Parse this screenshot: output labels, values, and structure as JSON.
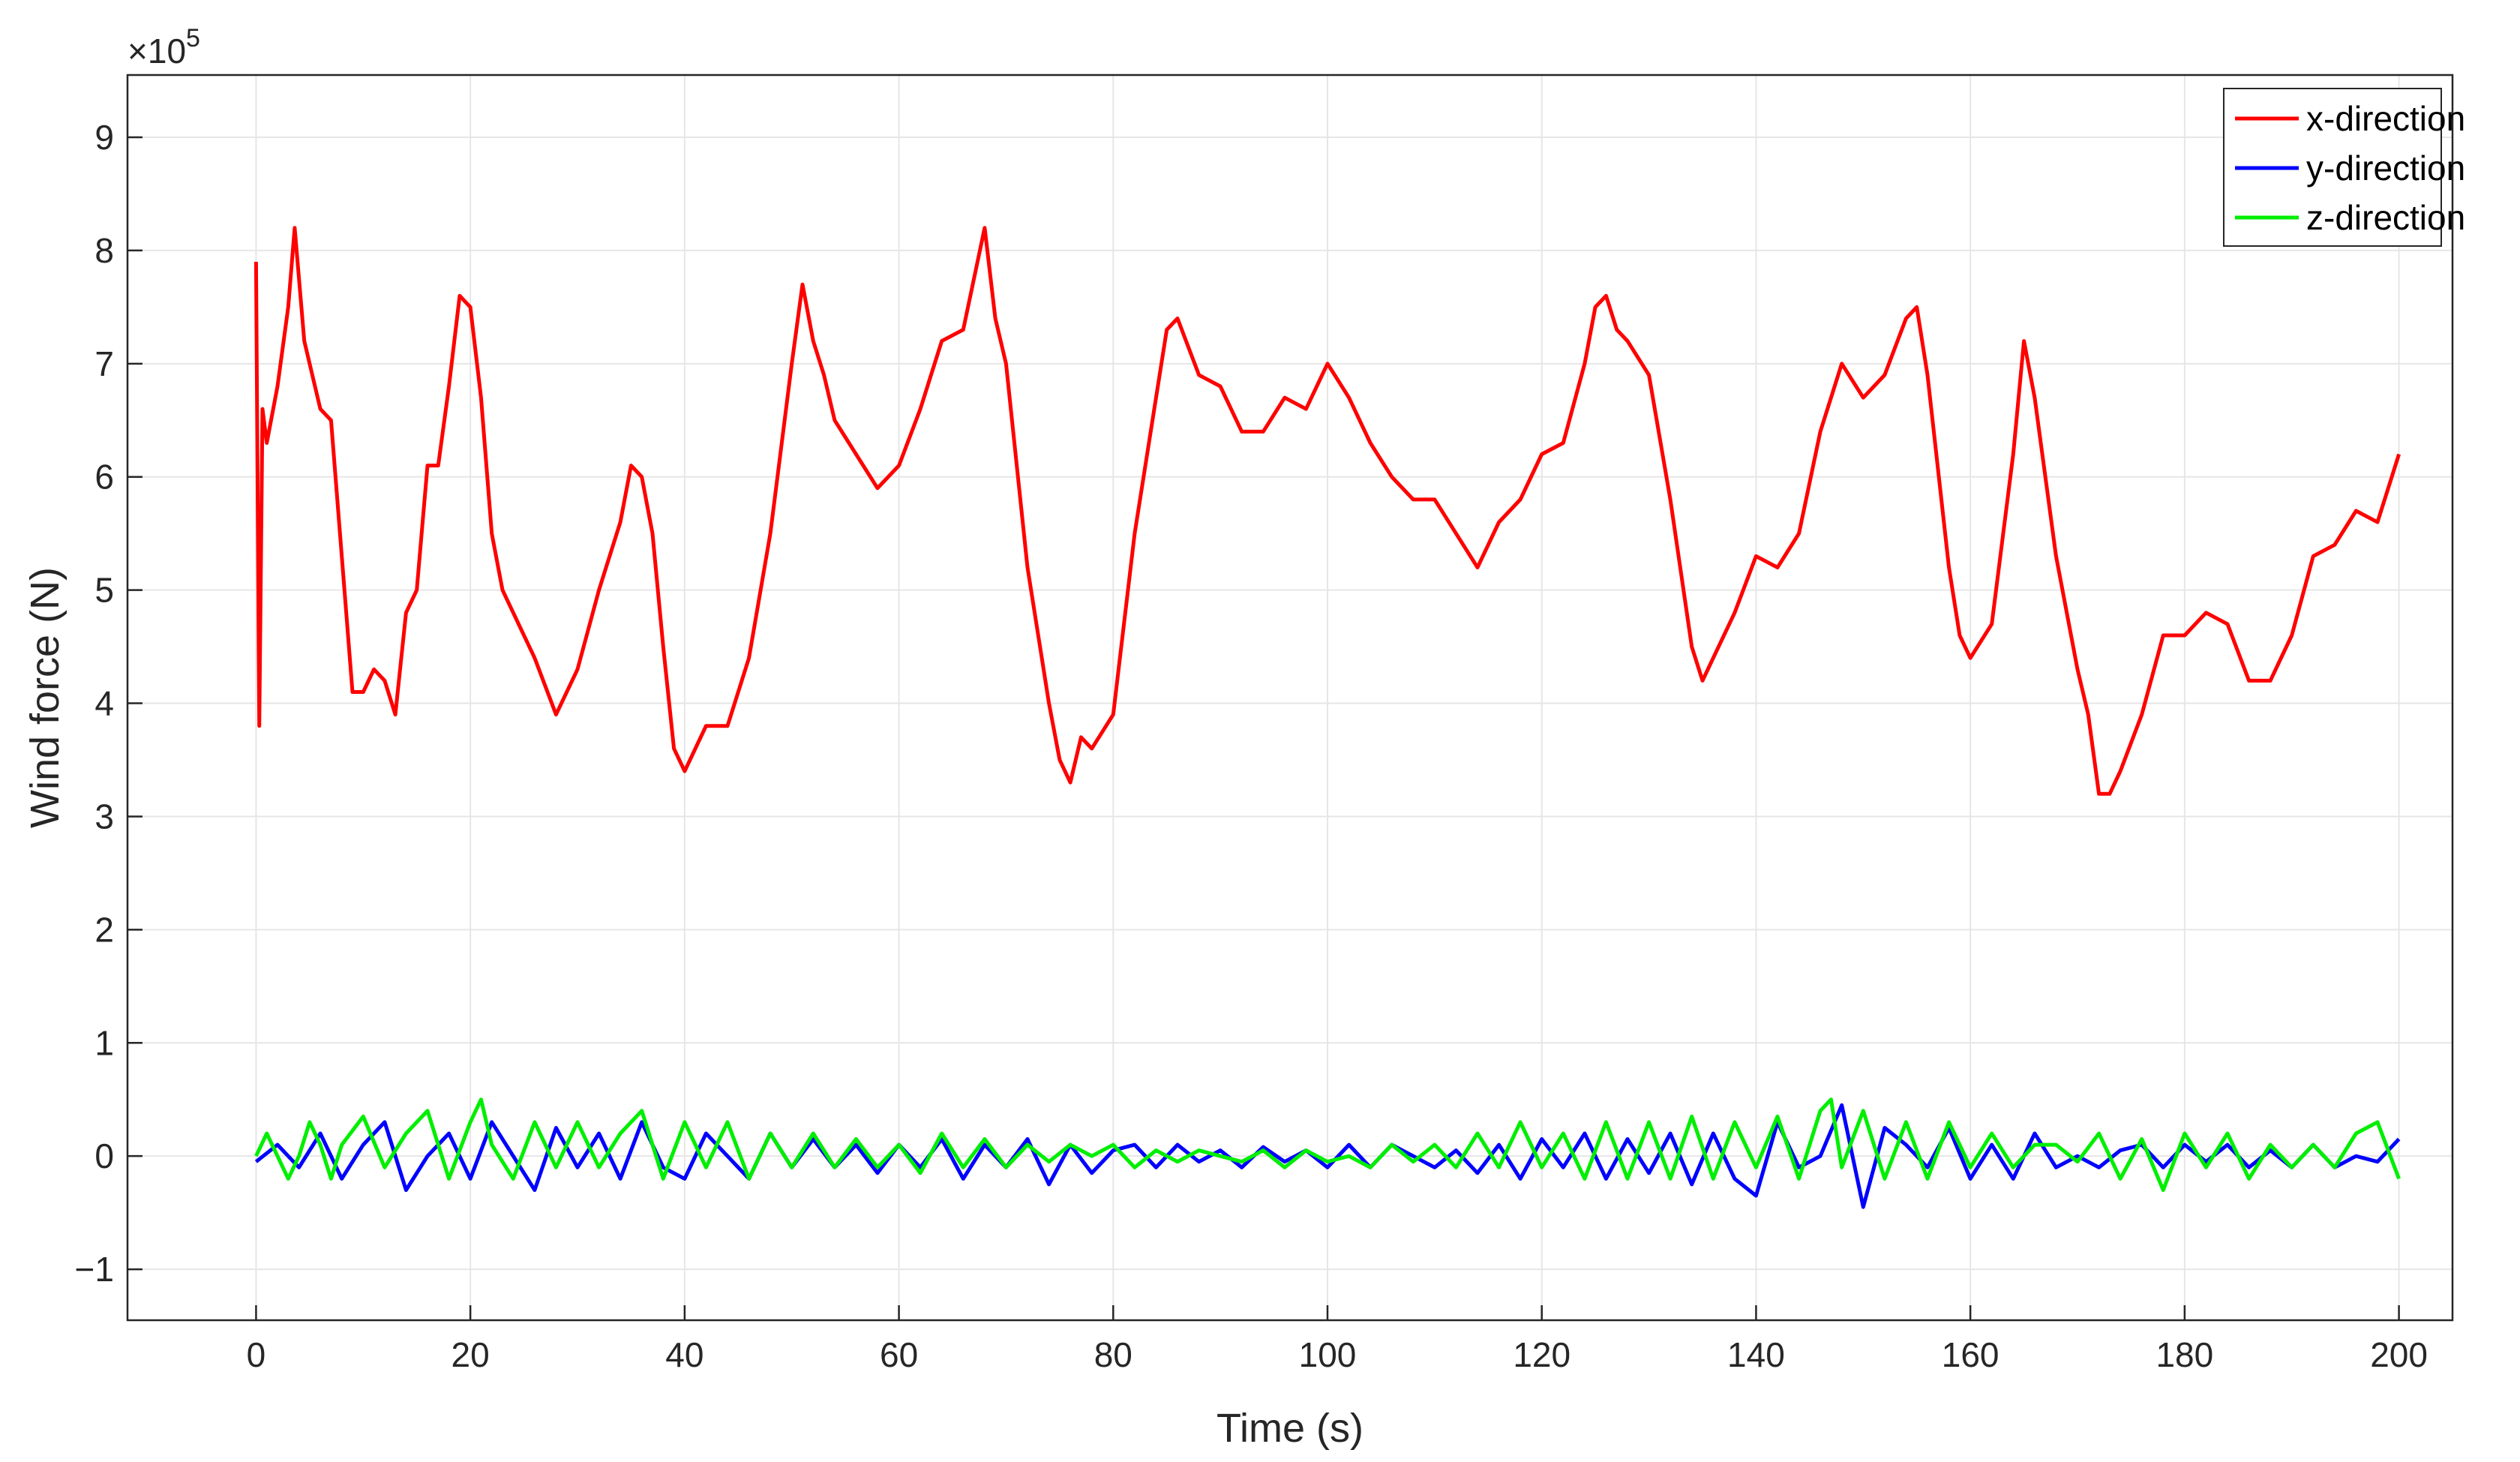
{
  "chart_data": {
    "type": "line",
    "title": "",
    "xlabel": "Time (s)",
    "ylabel": "Wind force (N)",
    "y_exponent_label": "×10",
    "y_exponent": "5",
    "xlim": [
      -12,
      205
    ],
    "ylim": [
      -1.45,
      9.55
    ],
    "xticks": [
      0,
      20,
      40,
      60,
      80,
      100,
      120,
      140,
      160,
      180,
      200
    ],
    "yticks": [
      -1,
      0,
      1,
      2,
      3,
      4,
      5,
      6,
      7,
      8,
      9
    ],
    "xtick_labels": [
      "0",
      "20",
      "40",
      "60",
      "80",
      "100",
      "120",
      "140",
      "160",
      "180",
      "200"
    ],
    "ytick_labels": [
      "−1",
      "0",
      "1",
      "2",
      "3",
      "4",
      "5",
      "6",
      "7",
      "8",
      "9"
    ],
    "grid": true,
    "legend_position": "top-right",
    "series": [
      {
        "name": "x-direction",
        "color": "#ff0000",
        "x": [
          0,
          0.3,
          0.6,
          1,
          2,
          3,
          3.6,
          4.5,
          6,
          7,
          8,
          9,
          10,
          11,
          12,
          13,
          14,
          15,
          16,
          17,
          18,
          19,
          20,
          21,
          22,
          23,
          24,
          26,
          28,
          30,
          32,
          34,
          35,
          36,
          37,
          38,
          39,
          40,
          42,
          44,
          46,
          48,
          50,
          51,
          52,
          53,
          54,
          56,
          58,
          60,
          62,
          64,
          66,
          68,
          69,
          70,
          72,
          74,
          75,
          76,
          77,
          78,
          80,
          82,
          84,
          85,
          86,
          88,
          90,
          92,
          94,
          96,
          98,
          100,
          102,
          104,
          106,
          108,
          110,
          112,
          114,
          116,
          118,
          120,
          122,
          124,
          125,
          126,
          127,
          128,
          130,
          132,
          134,
          135,
          136,
          138,
          140,
          142,
          144,
          146,
          148,
          150,
          152,
          154,
          155,
          156,
          158,
          159,
          160,
          162,
          164,
          165,
          166,
          168,
          170,
          171,
          172,
          173,
          174,
          176,
          178,
          180,
          182,
          184,
          186,
          188,
          190,
          192,
          194,
          196,
          198,
          200
        ],
        "y": [
          7.9,
          3.8,
          6.6,
          6.3,
          6.8,
          7.5,
          8.2,
          7.2,
          6.6,
          6.5,
          5.3,
          4.1,
          4.1,
          4.3,
          4.2,
          3.9,
          4.8,
          5.0,
          6.1,
          6.1,
          6.8,
          7.6,
          7.5,
          6.7,
          5.5,
          5.0,
          4.8,
          4.4,
          3.9,
          4.3,
          5.0,
          5.6,
          6.1,
          6.0,
          5.5,
          4.5,
          3.6,
          3.4,
          3.8,
          3.8,
          4.4,
          5.5,
          7.0,
          7.7,
          7.2,
          6.9,
          6.5,
          6.2,
          5.9,
          6.1,
          6.6,
          7.2,
          7.3,
          8.2,
          7.4,
          7.0,
          5.2,
          4.0,
          3.5,
          3.3,
          3.7,
          3.6,
          3.9,
          5.5,
          6.7,
          7.3,
          7.4,
          6.9,
          6.8,
          6.4,
          6.4,
          6.7,
          6.6,
          7.0,
          6.7,
          6.3,
          6.0,
          5.8,
          5.8,
          5.5,
          5.2,
          5.6,
          5.8,
          6.2,
          6.3,
          7.0,
          7.5,
          7.6,
          7.3,
          7.2,
          6.9,
          5.8,
          4.5,
          4.2,
          4.4,
          4.8,
          5.3,
          5.2,
          5.5,
          6.4,
          7.0,
          6.7,
          6.9,
          7.4,
          7.5,
          6.9,
          5.2,
          4.6,
          4.4,
          4.7,
          6.2,
          7.2,
          6.7,
          5.3,
          4.3,
          3.9,
          3.2,
          3.2,
          3.4,
          3.9,
          4.6,
          4.6,
          4.8,
          4.7,
          4.2,
          4.2,
          4.6,
          5.3,
          5.4,
          5.7,
          5.6,
          6.2
        ]
      },
      {
        "name": "y-direction",
        "color": "#0000ff",
        "x": [
          0,
          2,
          4,
          6,
          8,
          10,
          12,
          14,
          16,
          18,
          20,
          22,
          24,
          26,
          28,
          30,
          32,
          34,
          36,
          38,
          40,
          42,
          44,
          46,
          48,
          50,
          52,
          54,
          56,
          58,
          60,
          62,
          64,
          66,
          68,
          70,
          72,
          74,
          76,
          78,
          80,
          82,
          84,
          86,
          88,
          90,
          92,
          94,
          96,
          98,
          100,
          102,
          104,
          106,
          108,
          110,
          112,
          114,
          116,
          118,
          120,
          122,
          124,
          126,
          128,
          130,
          132,
          134,
          136,
          138,
          140,
          142,
          144,
          146,
          148,
          150,
          152,
          154,
          156,
          158,
          160,
          162,
          164,
          166,
          168,
          170,
          172,
          174,
          176,
          178,
          180,
          182,
          184,
          186,
          188,
          190,
          192,
          194,
          196,
          198,
          200
        ],
        "y": [
          -0.05,
          0.1,
          -0.1,
          0.2,
          -0.2,
          0.1,
          0.3,
          -0.3,
          0.0,
          0.2,
          -0.2,
          0.3,
          0.0,
          -0.3,
          0.25,
          -0.1,
          0.2,
          -0.2,
          0.3,
          -0.1,
          -0.2,
          0.2,
          0.0,
          -0.2,
          0.2,
          -0.1,
          0.15,
          -0.1,
          0.1,
          -0.15,
          0.1,
          -0.1,
          0.15,
          -0.2,
          0.1,
          -0.1,
          0.15,
          -0.25,
          0.1,
          -0.15,
          0.05,
          0.1,
          -0.1,
          0.1,
          -0.05,
          0.05,
          -0.1,
          0.08,
          -0.05,
          0.05,
          -0.1,
          0.1,
          -0.1,
          0.1,
          0.0,
          -0.1,
          0.05,
          -0.15,
          0.1,
          -0.2,
          0.15,
          -0.1,
          0.2,
          -0.2,
          0.15,
          -0.15,
          0.2,
          -0.25,
          0.2,
          -0.2,
          -0.35,
          0.3,
          -0.1,
          0.0,
          0.45,
          -0.45,
          0.25,
          0.1,
          -0.1,
          0.25,
          -0.2,
          0.1,
          -0.2,
          0.2,
          -0.1,
          0.0,
          -0.1,
          0.05,
          0.1,
          -0.1,
          0.1,
          -0.05,
          0.1,
          -0.1,
          0.05,
          -0.1,
          0.1,
          -0.1,
          0.0,
          -0.05,
          0.15
        ]
      },
      {
        "name": "z-direction",
        "color": "#00ee00",
        "x": [
          0,
          1,
          2,
          3,
          4,
          5,
          6,
          7,
          8,
          10,
          12,
          14,
          16,
          18,
          20,
          21,
          22,
          24,
          26,
          28,
          30,
          32,
          34,
          36,
          38,
          40,
          42,
          44,
          46,
          48,
          50,
          52,
          54,
          56,
          58,
          60,
          62,
          64,
          66,
          68,
          70,
          72,
          74,
          76,
          78,
          80,
          82,
          84,
          86,
          88,
          90,
          92,
          94,
          96,
          98,
          100,
          102,
          104,
          106,
          108,
          110,
          112,
          114,
          116,
          118,
          120,
          122,
          124,
          126,
          128,
          130,
          132,
          134,
          136,
          138,
          140,
          142,
          144,
          146,
          147,
          148,
          150,
          152,
          154,
          156,
          158,
          160,
          162,
          164,
          166,
          168,
          170,
          172,
          174,
          176,
          178,
          180,
          182,
          184,
          186,
          188,
          190,
          192,
          194,
          196,
          198,
          200
        ],
        "y": [
          0.0,
          0.2,
          0.0,
          -0.2,
          0.0,
          0.3,
          0.1,
          -0.2,
          0.1,
          0.35,
          -0.1,
          0.2,
          0.4,
          -0.2,
          0.3,
          0.5,
          0.1,
          -0.2,
          0.3,
          -0.1,
          0.3,
          -0.1,
          0.2,
          0.4,
          -0.2,
          0.3,
          -0.1,
          0.3,
          -0.2,
          0.2,
          -0.1,
          0.2,
          -0.1,
          0.15,
          -0.1,
          0.1,
          -0.15,
          0.2,
          -0.1,
          0.15,
          -0.1,
          0.1,
          -0.05,
          0.1,
          0.0,
          0.1,
          -0.1,
          0.05,
          -0.05,
          0.05,
          0.0,
          -0.05,
          0.05,
          -0.1,
          0.05,
          -0.05,
          0.0,
          -0.1,
          0.1,
          -0.05,
          0.1,
          -0.1,
          0.2,
          -0.1,
          0.3,
          -0.1,
          0.2,
          -0.2,
          0.3,
          -0.2,
          0.3,
          -0.2,
          0.35,
          -0.2,
          0.3,
          -0.1,
          0.35,
          -0.2,
          0.4,
          0.5,
          -0.1,
          0.4,
          -0.2,
          0.3,
          -0.2,
          0.3,
          -0.1,
          0.2,
          -0.1,
          0.1,
          0.1,
          -0.05,
          0.2,
          -0.2,
          0.15,
          -0.3,
          0.2,
          -0.1,
          0.2,
          -0.2,
          0.1,
          -0.1,
          0.1,
          -0.1,
          0.2,
          0.3,
          -0.2
        ]
      }
    ]
  }
}
